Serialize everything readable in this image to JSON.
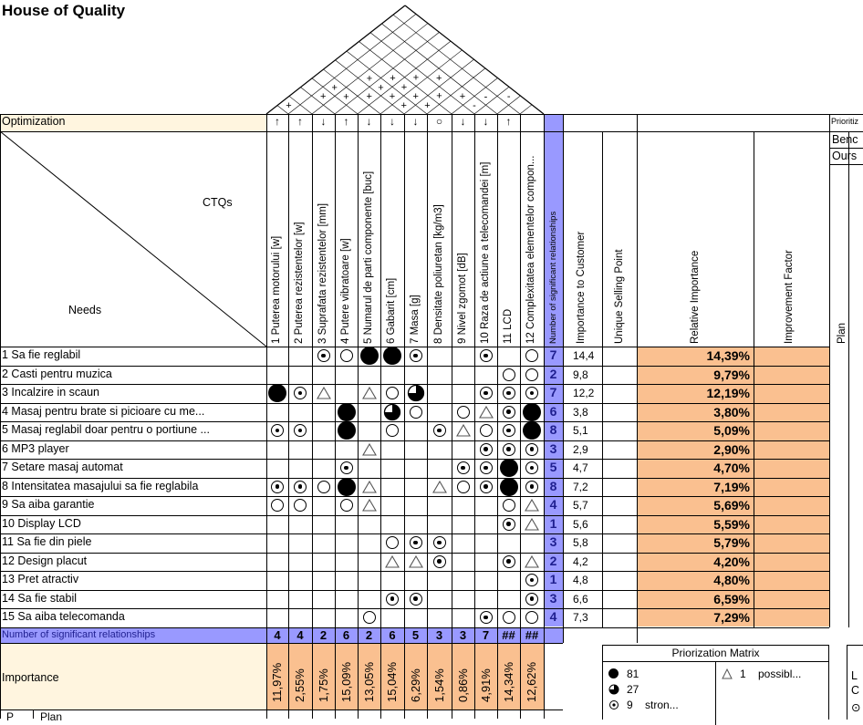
{
  "title": "House of Quality",
  "optimization_label": "Optimization",
  "ctqs_label": "CTQs",
  "needs_label": "Needs",
  "prioritiz_label": "Prioritiz",
  "bench_label": "Benc",
  "ours_label": "Ours",
  "nsr_label": "Number of significant relationships",
  "importance_label": "Importance",
  "plan_label": "Plan",
  "plan_short_label": "Plan",
  "p_label": "P",
  "col_headers": {
    "number_of_relationships": "Number of significant relationships",
    "importance_to_customer": "Importance to Customer",
    "unique_selling_point": "Unique Selling Point",
    "relative_importance": "Relative Importance",
    "improvement_factor": "Improvement Factor"
  },
  "roof_marks": [
    {
      "i": 0,
      "j": 1,
      "t": "+"
    },
    {
      "i": 1,
      "j": 3,
      "t": "+"
    },
    {
      "i": 1,
      "j": 4,
      "t": "+"
    },
    {
      "i": 2,
      "j": 4,
      "t": "+"
    },
    {
      "i": 3,
      "j": 5,
      "t": "+"
    },
    {
      "i": 3,
      "j": 6,
      "t": "+"
    },
    {
      "i": 4,
      "j": 6,
      "t": "+"
    },
    {
      "i": 4,
      "j": 7,
      "t": "+"
    },
    {
      "i": 4,
      "j": 8,
      "t": "+"
    },
    {
      "i": 5,
      "j": 6,
      "t": "+"
    },
    {
      "i": 5,
      "j": 7,
      "t": "+"
    },
    {
      "i": 5,
      "j": 9,
      "t": "+"
    },
    {
      "i": 6,
      "j": 7,
      "t": "+"
    },
    {
      "i": 6,
      "j": 8,
      "t": "+"
    },
    {
      "i": 7,
      "j": 9,
      "t": "+"
    },
    {
      "i": 8,
      "j": 10,
      "t": "-"
    },
    {
      "i": 8,
      "j": 9,
      "t": "-"
    },
    {
      "i": 9,
      "j": 11,
      "t": "-"
    },
    {
      "i": 3,
      "j": 7,
      "t": "+"
    },
    {
      "i": 2,
      "j": 6,
      "t": "+"
    }
  ],
  "ctqs": [
    {
      "label": "1 Puterea motorului [w]",
      "opt": "↑",
      "nsr": "4",
      "imp": "11,97%"
    },
    {
      "label": "2 Puterea rezistentelor [w]",
      "opt": "↑",
      "nsr": "4",
      "imp": "2,55%"
    },
    {
      "label": "3 Suprafata rezistentelor [mm]",
      "opt": "↓",
      "nsr": "2",
      "imp": "1,75%"
    },
    {
      "label": "4 Putere vibratoare [w]",
      "opt": "↑",
      "nsr": "6",
      "imp": "15,09%"
    },
    {
      "label": "5 Numarul de parti componente [buc]",
      "opt": "↓",
      "nsr": "2",
      "imp": "13,05%"
    },
    {
      "label": "6 Gabarit [cm]",
      "opt": "↓",
      "nsr": "6",
      "imp": "15,04%"
    },
    {
      "label": "7 Masa [g]",
      "opt": "↓",
      "nsr": "5",
      "imp": "6,29%"
    },
    {
      "label": "8 Densitate poliuretan [kg/m3]",
      "opt": "○",
      "nsr": "3",
      "imp": "1,54%"
    },
    {
      "label": "9 Nivel zgomot [dB]",
      "opt": "↓",
      "nsr": "3",
      "imp": "0,86%"
    },
    {
      "label": "10 Raza de actiune a telecomandei [m]",
      "opt": "↓",
      "nsr": "7",
      "imp": "4,91%"
    },
    {
      "label": "11 LCD",
      "opt": "↑",
      "nsr": "##",
      "imp": "14,34%"
    },
    {
      "label": "12 Complexitatea elementelor compon...",
      "opt": "",
      "nsr": "##",
      "imp": "12,62%"
    }
  ],
  "needs": [
    {
      "label": "1 Sa fie reglabil",
      "nsr": "7",
      "itc": "14,4",
      "rel": "14,39%",
      "cells": [
        "",
        "",
        "dot",
        "circle",
        "full",
        "full",
        "dot",
        "",
        "",
        "dot",
        "",
        "circle"
      ]
    },
    {
      "label": "2 Casti pentru muzica",
      "nsr": "2",
      "itc": "9,8",
      "rel": "9,79%",
      "cells": [
        "",
        "",
        "",
        "",
        "",
        "",
        "",
        "",
        "",
        "",
        "circle",
        "circle"
      ]
    },
    {
      "label": "3 Incalzire in scaun",
      "nsr": "7",
      "itc": "12,2",
      "rel": "12,19%",
      "cells": [
        "full",
        "dot",
        "tri",
        "",
        "tri",
        "circle",
        "q3",
        "",
        "",
        "dot",
        "dot",
        "dot"
      ]
    },
    {
      "label": "4 Masaj pentru brate si picioare cu me...",
      "nsr": "6",
      "itc": "3,8",
      "rel": "3,80%",
      "cells": [
        "",
        "",
        "",
        "full",
        "",
        "q3",
        "circle",
        "",
        "circle",
        "tri",
        "dot",
        "full"
      ]
    },
    {
      "label": "5 Masaj reglabil doar pentru o portiune ...",
      "nsr": "8",
      "itc": "5,1",
      "rel": "5,09%",
      "cells": [
        "dot",
        "dot",
        "",
        "full",
        "",
        "circle",
        "",
        "dot",
        "tri",
        "circle",
        "dot",
        "full"
      ]
    },
    {
      "label": "6 MP3 player",
      "nsr": "3",
      "itc": "2,9",
      "rel": "2,90%",
      "cells": [
        "",
        "",
        "",
        "",
        "tri",
        "",
        "",
        "",
        "",
        "dot",
        "dot",
        "dot"
      ]
    },
    {
      "label": "7 Setare masaj automat",
      "nsr": "5",
      "itc": "4,7",
      "rel": "4,70%",
      "cells": [
        "",
        "",
        "",
        "dot",
        "",
        "",
        "",
        "",
        "dot",
        "dot",
        "full",
        "dot"
      ]
    },
    {
      "label": "8 Intensitatea masajului sa fie reglabila",
      "nsr": "8",
      "itc": "7,2",
      "rel": "7,19%",
      "cells": [
        "dot",
        "dot",
        "circle",
        "full",
        "tri",
        "",
        "",
        "tri",
        "circle",
        "dot",
        "full",
        "dot"
      ]
    },
    {
      "label": "9 Sa aiba garantie",
      "nsr": "4",
      "itc": "5,7",
      "rel": "5,69%",
      "cells": [
        "circle",
        "circle",
        "",
        "circle",
        "tri",
        "",
        "",
        "",
        "",
        "",
        "circle",
        "tri"
      ]
    },
    {
      "label": "10 Display LCD",
      "nsr": "1",
      "itc": "5,6",
      "rel": "5,59%",
      "cells": [
        "",
        "",
        "",
        "",
        "",
        "",
        "",
        "",
        "",
        "",
        "dot",
        "tri"
      ]
    },
    {
      "label": "11 Sa fie din piele",
      "nsr": "3",
      "itc": "5,8",
      "rel": "5,79%",
      "cells": [
        "",
        "",
        "",
        "",
        "",
        "circle",
        "dot",
        "dot",
        "",
        "",
        "",
        ""
      ]
    },
    {
      "label": "12 Design placut",
      "nsr": "2",
      "itc": "4,2",
      "rel": "4,20%",
      "cells": [
        "",
        "",
        "",
        "",
        "",
        "tri",
        "tri",
        "dot",
        "",
        "",
        "dot",
        "tri"
      ]
    },
    {
      "label": "13 Pret atractiv",
      "nsr": "1",
      "itc": "4,8",
      "rel": "4,80%",
      "cells": [
        "",
        "",
        "",
        "",
        "",
        "",
        "",
        "",
        "",
        "",
        "",
        "dot"
      ]
    },
    {
      "label": "14 Sa fie stabil",
      "nsr": "3",
      "itc": "6,6",
      "rel": "6,59%",
      "cells": [
        "",
        "",
        "",
        "",
        "",
        "dot",
        "dot",
        "",
        "",
        "",
        "",
        "dot"
      ]
    },
    {
      "label": "15 Sa aiba telecomanda",
      "nsr": "4",
      "itc": "7,3",
      "rel": "7,29%",
      "cells": [
        "",
        "",
        "",
        "",
        "circle",
        "",
        "",
        "",
        "",
        "dot",
        "circle",
        "circle"
      ]
    }
  ],
  "legend": {
    "title": "Priorization Matrix",
    "items": [
      {
        "sym": "full",
        "value": "81",
        "text": ""
      },
      {
        "sym": "q3",
        "value": "27",
        "text": ""
      },
      {
        "sym": "dot",
        "value": "9",
        "text": "stron..."
      },
      {
        "sym": "tri",
        "value": "1",
        "text": "possibl..."
      }
    ]
  },
  "right_legend": {
    "l1": "L",
    "l2": "C",
    "l3": "⊙"
  },
  "colors": {
    "peach": "#fac090",
    "lavender": "#9999ff",
    "cream": "#fff5df",
    "navy": "#1f1f8f"
  }
}
